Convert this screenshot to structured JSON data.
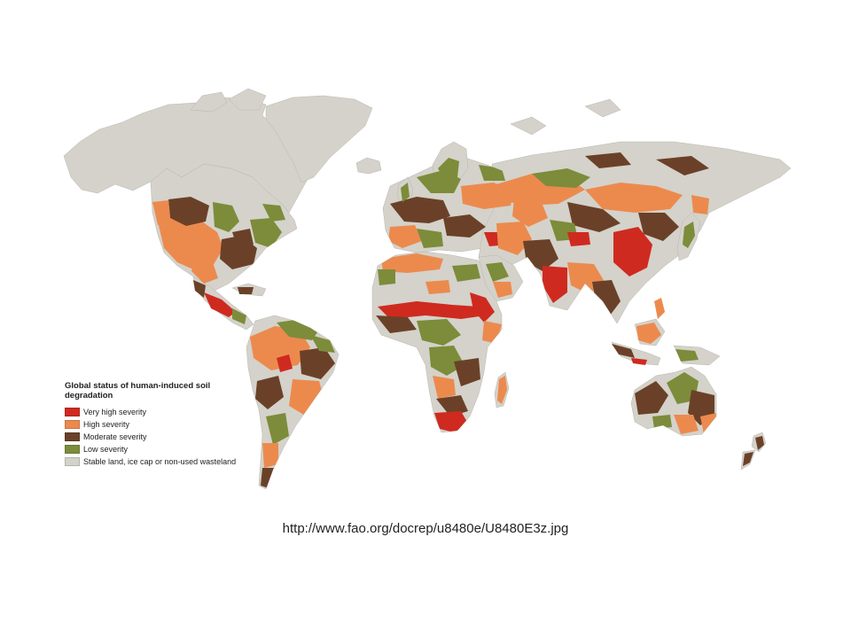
{
  "legend": {
    "title": "Global status of human-induced soil degradation",
    "items": [
      {
        "label": "Very high severity",
        "color": "#cf2a20"
      },
      {
        "label": "High severity",
        "color": "#ec8a4e"
      },
      {
        "label": "Moderate severity",
        "color": "#6a4128"
      },
      {
        "label": "Low severity",
        "color": "#7c8c3a"
      },
      {
        "label": "Stable land, ice cap or non-used wasteland",
        "color": "#d4d2ca"
      }
    ]
  },
  "source_url": "http://www.fao.org/docrep/u8480e/U8480E3z.jpg"
}
